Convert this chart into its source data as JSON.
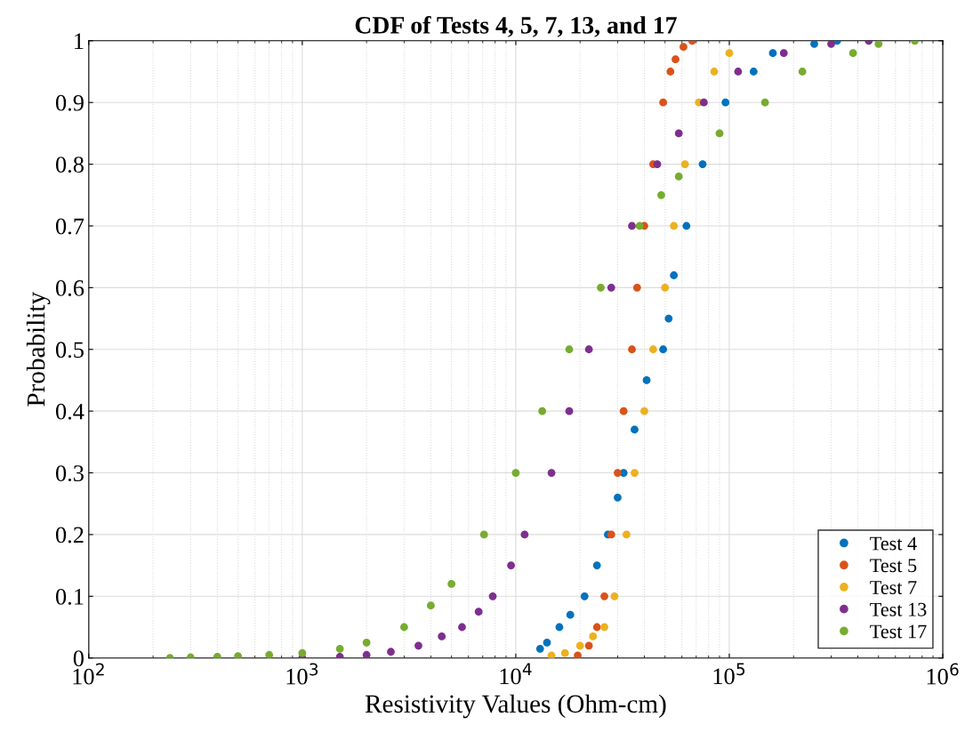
{
  "chart_data": {
    "type": "scatter",
    "title": "CDF of Tests 4, 5, 7, 13, and 17",
    "xlabel": "Resistivity Values (Ohm-cm)",
    "ylabel": "Probability",
    "log": "x",
    "xlim": [
      100,
      1000000
    ],
    "ylim": [
      0,
      1
    ],
    "xticks": [
      {
        "value": 100,
        "label": "10$^{2}$"
      },
      {
        "value": 1000,
        "label": "10$^{3}$"
      },
      {
        "value": 10000,
        "label": "10$^{4}$"
      },
      {
        "value": 100000,
        "label": "10$^{5}$"
      },
      {
        "value": 1000000,
        "label": "10$^{6}$"
      }
    ],
    "yticks": [
      0,
      0.1,
      0.2,
      0.3,
      0.4,
      0.5,
      0.6,
      0.7,
      0.8,
      0.9,
      1
    ],
    "grid": true,
    "legend": "bottom right",
    "marker": "circle",
    "series": [
      {
        "name": "Test 4",
        "color": "#0072bd",
        "x": [
          13000,
          14000,
          16000,
          18000,
          21000,
          24000,
          27000,
          30000,
          32000,
          36000,
          41000,
          49000,
          52000,
          55000,
          63000,
          75000,
          96000,
          130000,
          160000,
          250000,
          320000
        ],
        "values": [
          0.015,
          0.025,
          0.05,
          0.07,
          0.1,
          0.15,
          0.2,
          0.26,
          0.3,
          0.37,
          0.45,
          0.5,
          0.55,
          0.62,
          0.7,
          0.8,
          0.9,
          0.95,
          0.98,
          0.995,
          1
        ]
      },
      {
        "name": "Test 5",
        "color": "#d95319",
        "x": [
          19500,
          22000,
          24000,
          26000,
          28000,
          30000,
          32000,
          35000,
          37000,
          40000,
          44000,
          49000,
          53000,
          56000,
          61000,
          67000
        ],
        "values": [
          0.004,
          0.02,
          0.05,
          0.1,
          0.2,
          0.3,
          0.4,
          0.5,
          0.6,
          0.7,
          0.8,
          0.9,
          0.95,
          0.97,
          0.99,
          1
        ]
      },
      {
        "name": "Test 7",
        "color": "#edb120",
        "x": [
          14700,
          17000,
          20000,
          23000,
          26000,
          29000,
          33000,
          36000,
          40000,
          44000,
          50000,
          55000,
          62000,
          72000,
          85000,
          100000
        ],
        "values": [
          0.004,
          0.008,
          0.02,
          0.035,
          0.05,
          0.1,
          0.2,
          0.3,
          0.4,
          0.5,
          0.6,
          0.7,
          0.8,
          0.9,
          0.95,
          0.98
        ]
      },
      {
        "name": "Test 13",
        "color": "#7e2f8e",
        "x": [
          1000,
          1500,
          2000,
          2600,
          3500,
          4500,
          5600,
          6700,
          7800,
          9500,
          11000,
          14700,
          17800,
          22000,
          28000,
          35000,
          46000,
          58000,
          76000,
          110000,
          180000,
          300000,
          450000
        ],
        "values": [
          0,
          0.002,
          0.005,
          0.01,
          0.02,
          0.035,
          0.05,
          0.075,
          0.1,
          0.15,
          0.2,
          0.3,
          0.4,
          0.5,
          0.6,
          0.7,
          0.8,
          0.85,
          0.9,
          0.95,
          0.98,
          0.995,
          1
        ]
      },
      {
        "name": "Test 17",
        "color": "#77ac30",
        "x": [
          240,
          300,
          400,
          500,
          700,
          1000,
          1500,
          2000,
          3000,
          4000,
          5000,
          7100,
          10000,
          13300,
          17800,
          25000,
          38000,
          48000,
          58000,
          90000,
          147000,
          220000,
          380000,
          500000,
          740000
        ],
        "values": [
          0,
          0.001,
          0.002,
          0.003,
          0.005,
          0.008,
          0.015,
          0.025,
          0.05,
          0.085,
          0.12,
          0.2,
          0.3,
          0.4,
          0.5,
          0.6,
          0.7,
          0.75,
          0.78,
          0.85,
          0.9,
          0.95,
          0.98,
          0.995,
          1
        ]
      }
    ]
  }
}
